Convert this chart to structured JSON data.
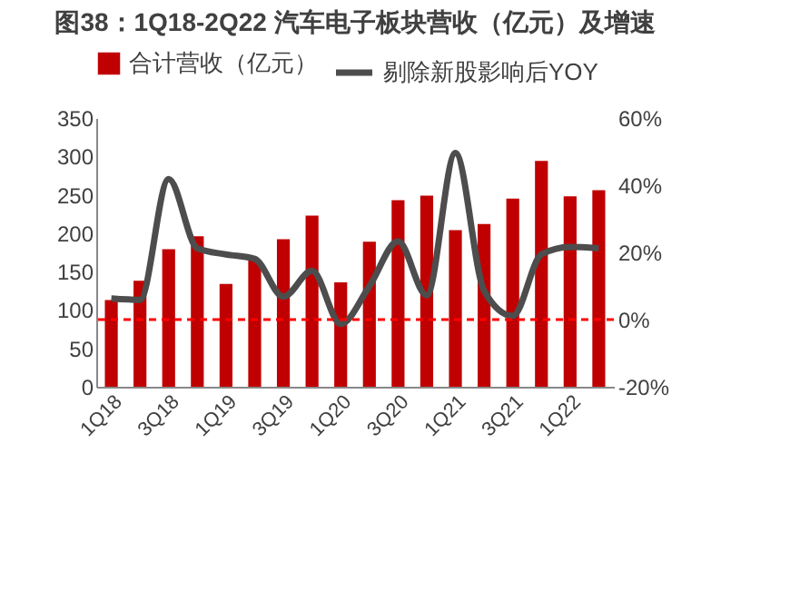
{
  "chart_data": {
    "type": "bar",
    "title": "图38：1Q18-2Q22 汽车电子板块营收（亿元）及增速",
    "categories": [
      "1Q18",
      null,
      "3Q18",
      null,
      "1Q19",
      null,
      "3Q19",
      null,
      "1Q20",
      null,
      "3Q20",
      null,
      "1Q21",
      null,
      "3Q21",
      null,
      "1Q22",
      null
    ],
    "series": [
      {
        "name": "合计营收（亿元）",
        "color": "#c00000",
        "values": [
          113,
          138,
          179,
          196,
          134,
          165,
          192,
          223,
          136,
          189,
          243,
          249,
          204,
          212,
          245,
          294,
          248,
          256
        ]
      },
      {
        "name": "剔除新股影响后YOY",
        "type": "line",
        "axis": "y2",
        "color": "#4d4d4d",
        "values": [
          6.3,
          5.9,
          41.8,
          21.2,
          19.4,
          18.1,
          6.8,
          14.5,
          -1.3,
          9.9,
          23.3,
          7.2,
          49.6,
          8.6,
          1.1,
          19.4,
          21.6,
          21.2
        ]
      }
    ],
    "ylim": [
      0,
      350
    ],
    "yticks": [
      0,
      50,
      100,
      150,
      200,
      250,
      300,
      350
    ],
    "y2lim": [
      -20,
      60
    ],
    "y2ticks": [
      {
        "value": -20,
        "label": "-20%"
      },
      {
        "value": 0,
        "label": "0%"
      },
      {
        "value": 20,
        "label": "20%"
      },
      {
        "value": 40,
        "label": "40%"
      },
      {
        "value": 60,
        "label": "60%"
      }
    ],
    "ref_lines": [
      {
        "axis": "y2",
        "value": 0,
        "color": "#ff0000",
        "line_style": "dashed"
      }
    ],
    "legend": "top",
    "grid": false
  }
}
